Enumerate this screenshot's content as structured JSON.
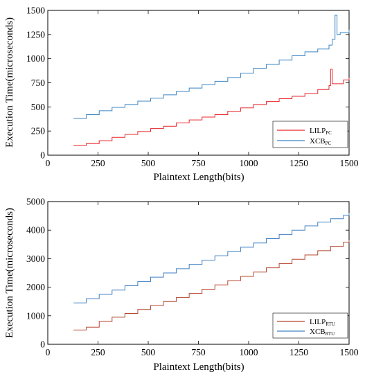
{
  "chart_data": [
    {
      "type": "line",
      "xlabel": "Plaintext Length(bits)",
      "ylabel": "Execution Time(microseconds)",
      "xlim": [
        0,
        1500
      ],
      "ylim": [
        0,
        1500
      ],
      "xticks": [
        "0",
        "250",
        "500",
        "750",
        "1000",
        "1250",
        "1500"
      ],
      "yticks": [
        "0",
        "250",
        "500",
        "750",
        "1000",
        "1250",
        "1500"
      ],
      "legend_position": "bottom-right",
      "series": [
        {
          "name": "LILP",
          "subscript": "PC",
          "color": "#e8262b",
          "x": [
            128,
            192,
            256,
            320,
            384,
            448,
            512,
            576,
            640,
            704,
            768,
            832,
            896,
            960,
            1024,
            1088,
            1152,
            1216,
            1280,
            1344,
            1400,
            1408,
            1416,
            1472,
            1500
          ],
          "y": [
            100,
            120,
            150,
            185,
            215,
            245,
            275,
            300,
            335,
            365,
            395,
            420,
            455,
            490,
            525,
            555,
            585,
            610,
            640,
            680,
            720,
            890,
            740,
            780,
            800
          ]
        },
        {
          "name": "XCB",
          "subscript": "PC",
          "color": "#3b85c4",
          "x": [
            128,
            192,
            256,
            320,
            384,
            448,
            512,
            576,
            640,
            704,
            768,
            832,
            896,
            960,
            1024,
            1088,
            1152,
            1216,
            1280,
            1344,
            1400,
            1416,
            1430,
            1440,
            1456,
            1500
          ],
          "y": [
            380,
            420,
            460,
            495,
            525,
            560,
            590,
            625,
            660,
            695,
            730,
            765,
            805,
            850,
            900,
            940,
            985,
            1030,
            1070,
            1100,
            1140,
            1200,
            1450,
            1250,
            1270,
            1300
          ]
        }
      ]
    },
    {
      "type": "line",
      "xlabel": "Plaintext Length(bits)",
      "ylabel": "Execution Time(microseconds)",
      "xlim": [
        0,
        1500
      ],
      "ylim": [
        0,
        5000
      ],
      "xticks": [
        "0",
        "250",
        "500",
        "750",
        "1000",
        "1250",
        "1500"
      ],
      "yticks": [
        "0",
        "1000",
        "2000",
        "3000",
        "4000",
        "5000"
      ],
      "legend_position": "bottom-right",
      "series": [
        {
          "name": "LILP",
          "subscript": "RTU",
          "color": "#b5462e",
          "x": [
            128,
            192,
            256,
            320,
            384,
            448,
            512,
            576,
            640,
            704,
            768,
            832,
            896,
            960,
            1024,
            1088,
            1152,
            1216,
            1280,
            1344,
            1408,
            1472,
            1500
          ],
          "y": [
            500,
            600,
            800,
            950,
            1080,
            1220,
            1360,
            1500,
            1640,
            1780,
            1930,
            2080,
            2230,
            2380,
            2530,
            2680,
            2830,
            2980,
            3130,
            3280,
            3430,
            3580,
            3650
          ]
        },
        {
          "name": "XCB",
          "subscript": "RTU",
          "color": "#3f7fc4",
          "x": [
            128,
            192,
            256,
            320,
            384,
            448,
            512,
            576,
            640,
            704,
            768,
            832,
            896,
            960,
            1024,
            1088,
            1152,
            1216,
            1280,
            1344,
            1408,
            1472,
            1500
          ],
          "y": [
            1450,
            1600,
            1750,
            1900,
            2050,
            2200,
            2350,
            2500,
            2650,
            2800,
            2950,
            3100,
            3250,
            3400,
            3550,
            3700,
            3850,
            4000,
            4150,
            4280,
            4400,
            4520,
            4600
          ]
        }
      ]
    }
  ]
}
